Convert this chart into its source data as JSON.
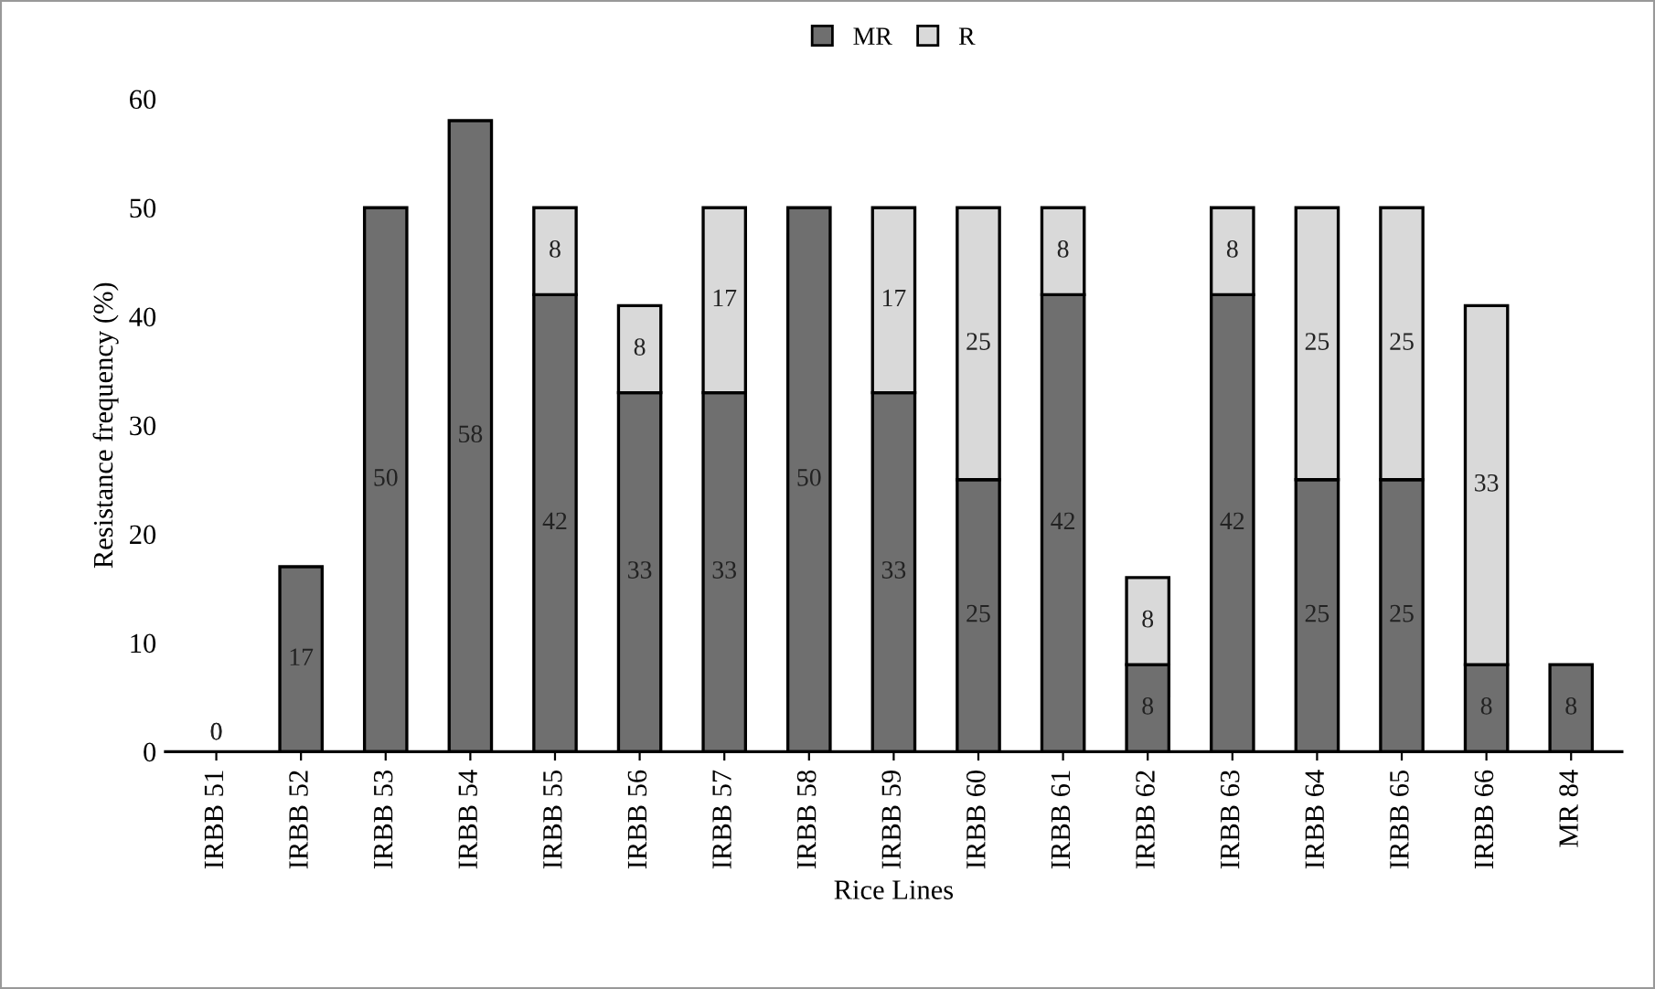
{
  "chart_data": {
    "type": "bar",
    "stacked": true,
    "xlabel": "Rice Lines",
    "ylabel": "Resistance frequency (%)",
    "categories": [
      "IRBB 51",
      "IRBB 52",
      "IRBB 53",
      "IRBB 54",
      "IRBB 55",
      "IRBB 56",
      "IRBB 57",
      "IRBB 58",
      "IRBB 59",
      "IRBB 60",
      "IRBB 61",
      "IRBB 62",
      "IRBB 63",
      "IRBB 64",
      "IRBB 65",
      "IRBB 66",
      "MR 84"
    ],
    "series": [
      {
        "name": "MR",
        "color": "#6f6f6f",
        "values": [
          0,
          17,
          50,
          58,
          42,
          33,
          33,
          50,
          33,
          25,
          42,
          8,
          42,
          25,
          25,
          8,
          8
        ],
        "value_labels": [
          "0",
          "17",
          "50",
          "58",
          "42",
          "33",
          "33",
          "50",
          "33",
          "25",
          "42",
          "8",
          "42",
          "25",
          "25",
          "8",
          "8"
        ]
      },
      {
        "name": "R",
        "color": "#d9d9d9",
        "values": [
          0,
          0,
          0,
          0,
          8,
          8,
          17,
          0,
          17,
          25,
          8,
          8,
          8,
          25,
          25,
          33,
          0
        ],
        "value_labels": [
          "0",
          null,
          null,
          null,
          "8",
          "8",
          "17",
          null,
          "17",
          "25",
          "8",
          "8",
          "8",
          "25",
          "25",
          "33",
          null
        ]
      }
    ],
    "ylim": [
      0,
      60
    ],
    "yticks": [
      0,
      10,
      20,
      30,
      40,
      50,
      60
    ],
    "grid": false,
    "legend": "top"
  }
}
